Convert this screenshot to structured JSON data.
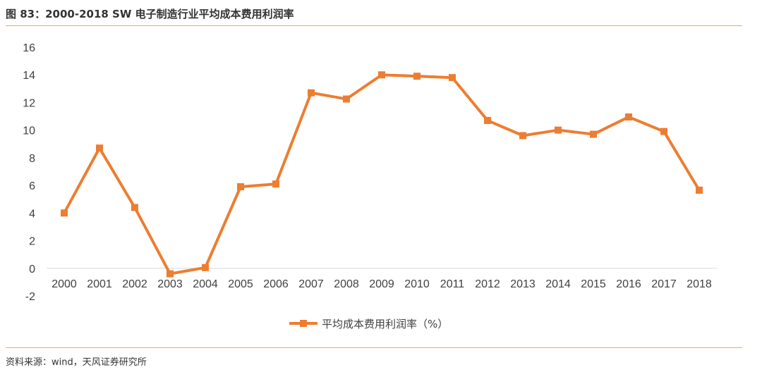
{
  "title": "图 83：2000-2018 SW 电子制造行业平均成本费用利润率",
  "source": "资料来源：wind，天风证券研究所",
  "colors": {
    "series": "#ED7D31",
    "rule": "#F4A55A",
    "axis": "#D9D9D9",
    "text": "#404040"
  },
  "chart_data": {
    "type": "line",
    "title": "",
    "xlabel": "",
    "ylabel": "",
    "categories": [
      "2000",
      "2001",
      "2002",
      "2003",
      "2004",
      "2005",
      "2006",
      "2007",
      "2008",
      "2009",
      "2010",
      "2011",
      "2012",
      "2013",
      "2014",
      "2015",
      "2016",
      "2017",
      "2018"
    ],
    "y_ticks": [
      "-2",
      "0",
      "2",
      "4",
      "6",
      "8",
      "10",
      "12",
      "14",
      "16"
    ],
    "ylim": [
      -2,
      16
    ],
    "grid": false,
    "legend_position": "bottom",
    "series": [
      {
        "name": "平均成本费用利润率（%）",
        "marker": "square",
        "values": [
          4.0,
          8.7,
          4.4,
          -0.4,
          0.05,
          5.9,
          6.1,
          12.7,
          12.25,
          14.0,
          13.9,
          13.8,
          10.7,
          9.6,
          10.0,
          9.7,
          10.95,
          9.9,
          5.65
        ]
      }
    ]
  }
}
